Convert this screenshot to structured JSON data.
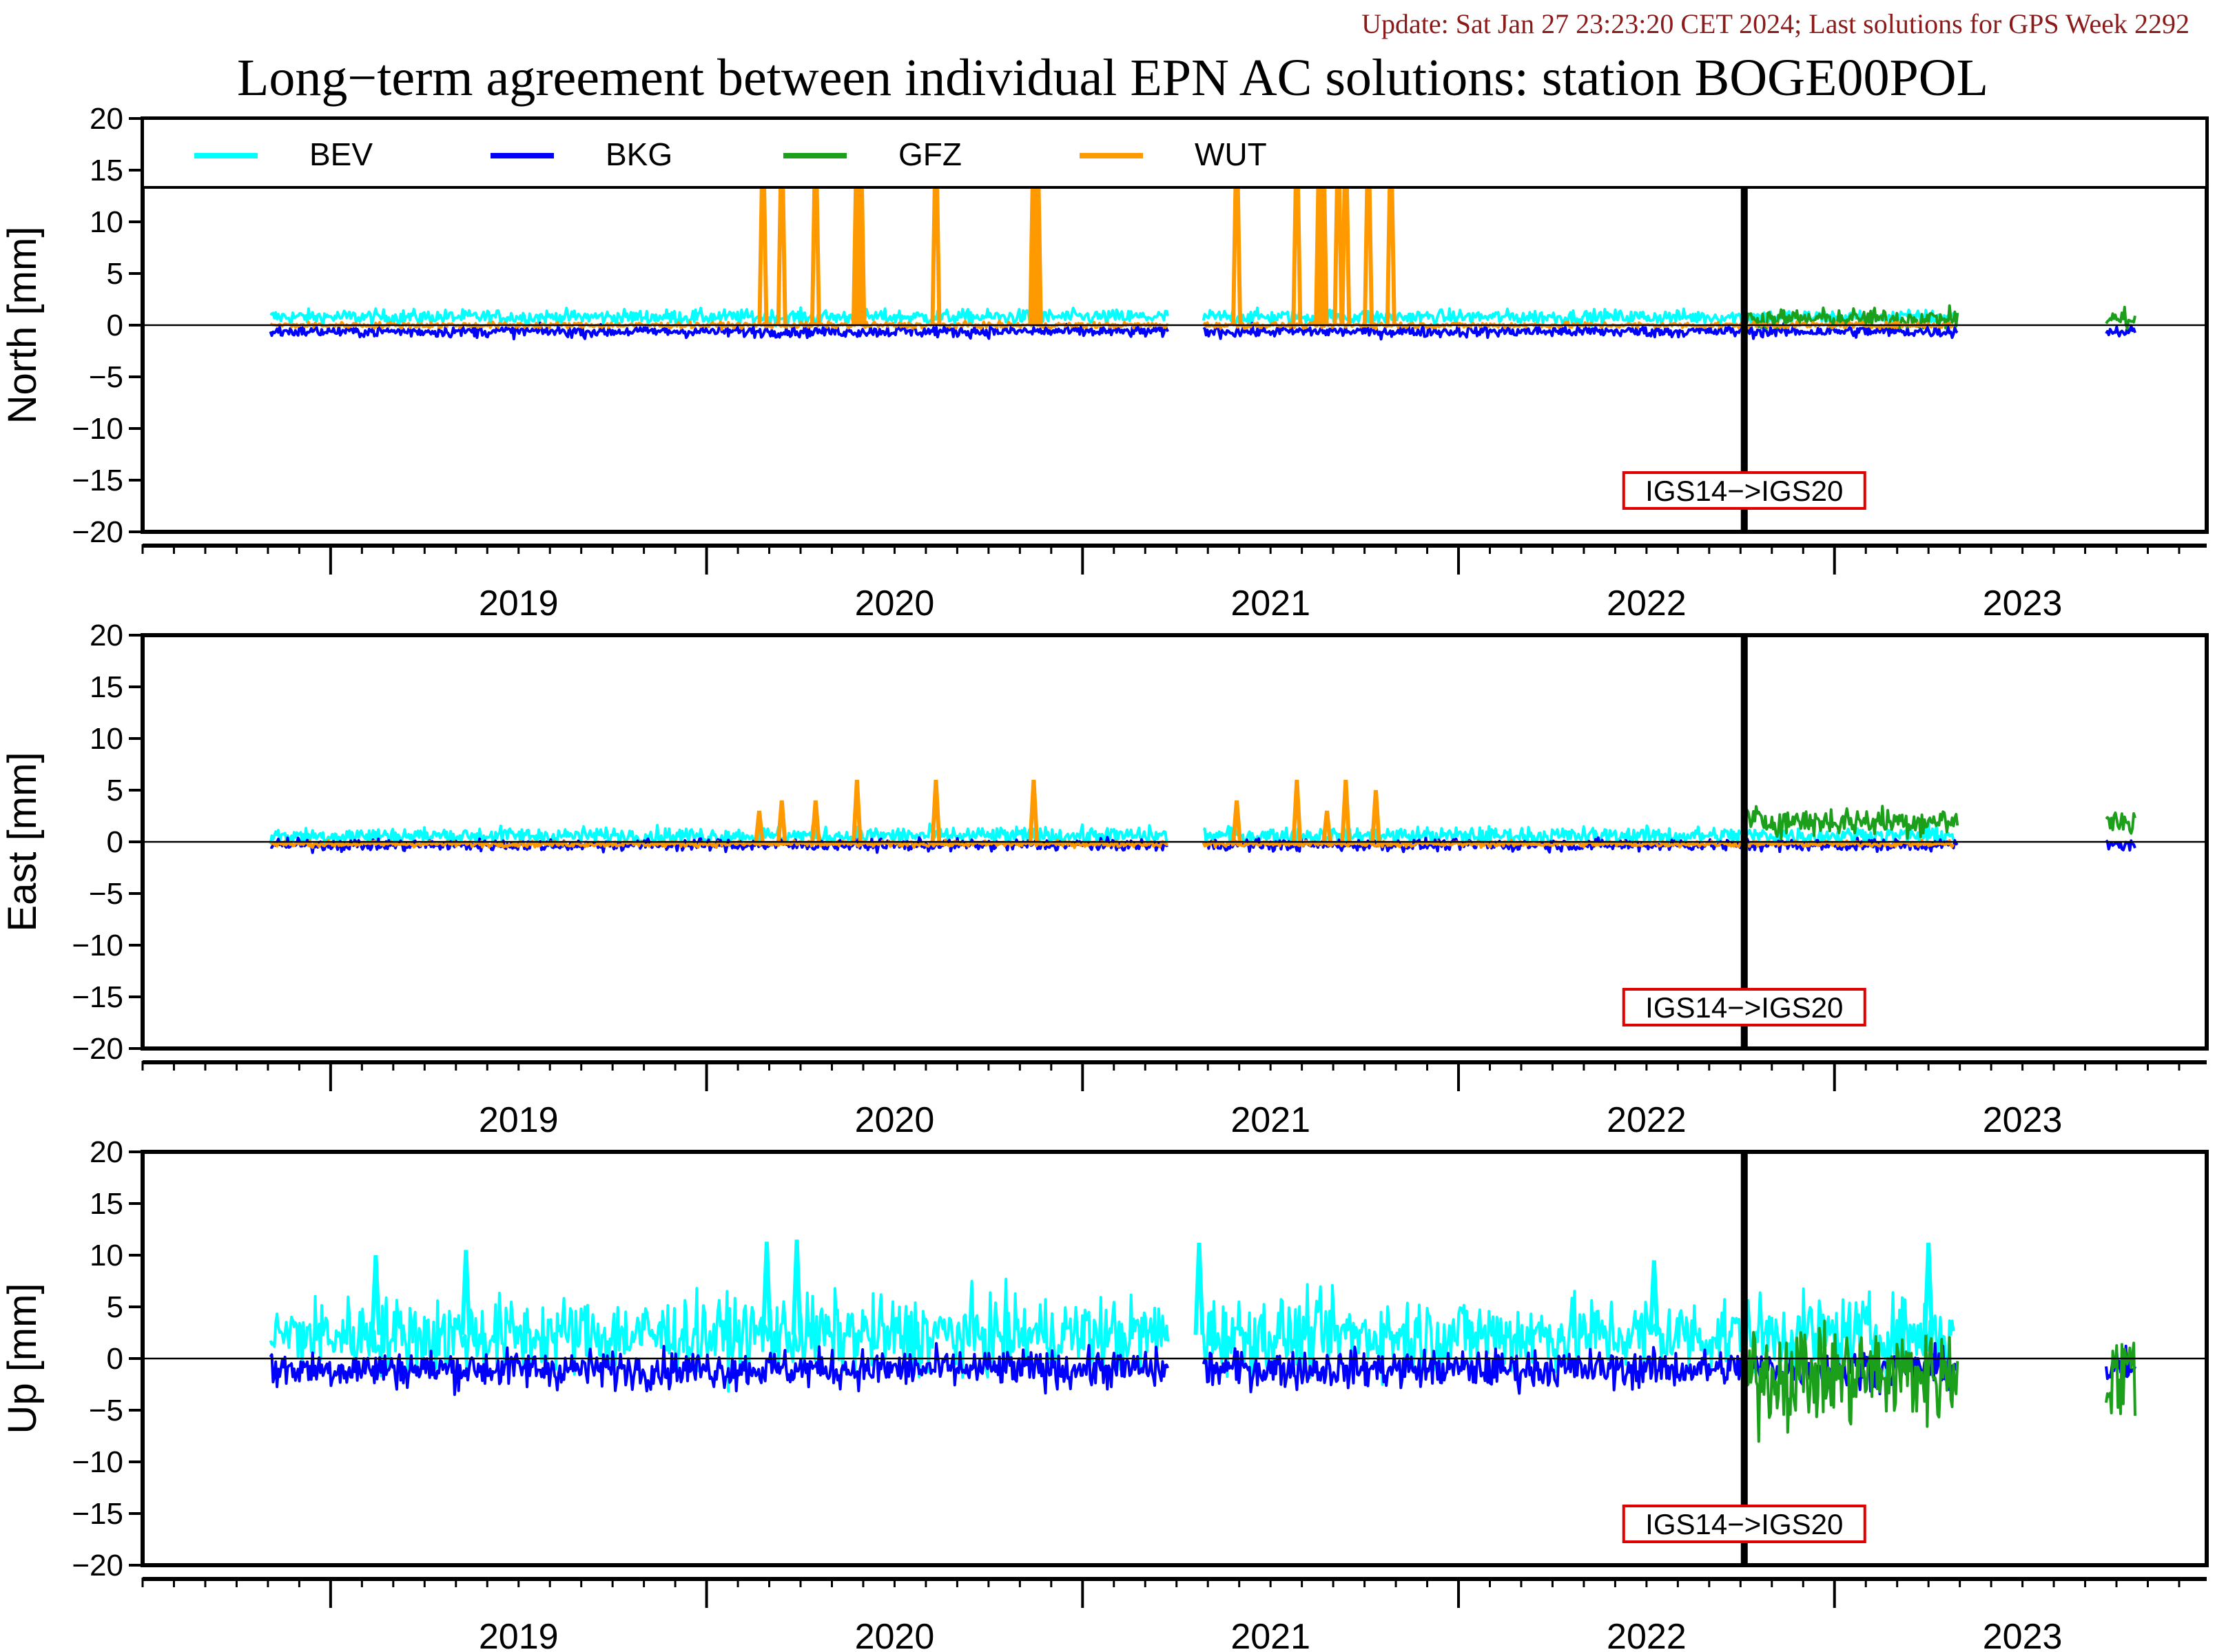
{
  "header": {
    "update_text": "Update: Sat Jan 27 23:23:20 CET 2024; Last solutions for GPS Week 2292",
    "title": "Long−term agreement between individual EPN AC solutions: station BOGE00POL"
  },
  "colors": {
    "update_text": "#8b1a1a",
    "BEV": "#00ffff",
    "BKG": "#0000ff",
    "GFZ": "#1ca01c",
    "WUT": "#ff9900",
    "marker_box": "#e00000"
  },
  "legend": [
    {
      "name": "BEV",
      "color": "#00ffff"
    },
    {
      "name": "BKG",
      "color": "#0000ff"
    },
    {
      "name": "GFZ",
      "color": "#1ca01c"
    },
    {
      "name": "WUT",
      "color": "#ff9900"
    }
  ],
  "chart_data": [
    {
      "type": "line",
      "ylabel": "North [mm]",
      "ylim": [
        -20,
        20
      ],
      "yticks": [
        "20",
        "15",
        "10",
        "5",
        "0",
        "−5",
        "−10",
        "−15",
        "−20"
      ],
      "xlim": [
        2018.5,
        2023.99
      ],
      "xtick_labels": [
        "2019",
        "2020",
        "2021",
        "2022",
        "2023"
      ],
      "frame_change": {
        "x": 2022.76,
        "label": "IGS14−>IGS20"
      },
      "series": [
        {
          "name": "BEV",
          "x_start": 2018.84,
          "x_end": 2023.32,
          "gaps": [
            [
              2021.23,
              2021.32
            ],
            [
              2023.33,
              2023.72
            ]
          ],
          "mean": 0.8,
          "noise": 0.5
        },
        {
          "name": "BKG",
          "x_start": 2018.84,
          "x_end": 2023.8,
          "gaps": [
            [
              2021.23,
              2021.32
            ],
            [
              2023.33,
              2023.72
            ]
          ],
          "mean": -0.6,
          "noise": 0.4
        },
        {
          "name": "GFZ",
          "x_start": 2022.76,
          "x_end": 2023.8,
          "gaps": [
            [
              2023.33,
              2023.72
            ]
          ],
          "mean": 0.6,
          "noise": 0.7
        },
        {
          "name": "WUT",
          "x_start": 2018.84,
          "x_end": 2023.32,
          "gaps": [
            [
              2021.23,
              2021.32
            ]
          ],
          "mean": 0.0,
          "noise": 0.2
        }
      ],
      "spikes": {
        "series": "WUT",
        "points": [
          [
            2020.15,
            20
          ],
          [
            2020.2,
            20
          ],
          [
            2020.29,
            20
          ],
          [
            2020.4,
            20
          ],
          [
            2020.41,
            20
          ],
          [
            2020.61,
            20
          ],
          [
            2020.87,
            20
          ],
          [
            2020.88,
            20
          ],
          [
            2021.41,
            20
          ],
          [
            2021.57,
            20
          ],
          [
            2021.63,
            20
          ],
          [
            2021.64,
            20
          ],
          [
            2021.68,
            20
          ],
          [
            2021.7,
            20
          ],
          [
            2021.76,
            20
          ],
          [
            2021.82,
            20
          ]
        ]
      }
    },
    {
      "type": "line",
      "ylabel": "East [mm]",
      "ylim": [
        -20,
        20
      ],
      "yticks": [
        "20",
        "15",
        "10",
        "5",
        "0",
        "−5",
        "−10",
        "−15",
        "−20"
      ],
      "xlim": [
        2018.5,
        2023.99
      ],
      "xtick_labels": [
        "2019",
        "2020",
        "2021",
        "2022",
        "2023"
      ],
      "frame_change": {
        "x": 2022.76,
        "label": "IGS14−>IGS20"
      },
      "series": [
        {
          "name": "BEV",
          "x_start": 2018.84,
          "x_end": 2023.32,
          "gaps": [
            [
              2021.23,
              2021.32
            ],
            [
              2023.33,
              2023.72
            ]
          ],
          "mean": 0.6,
          "noise": 0.6
        },
        {
          "name": "BKG",
          "x_start": 2018.84,
          "x_end": 2023.8,
          "gaps": [
            [
              2021.23,
              2021.32
            ],
            [
              2023.33,
              2023.72
            ]
          ],
          "mean": -0.3,
          "noise": 0.4
        },
        {
          "name": "GFZ",
          "x_start": 2022.76,
          "x_end": 2023.8,
          "gaps": [
            [
              2023.33,
              2023.72
            ]
          ],
          "mean": 2.0,
          "noise": 1.0
        },
        {
          "name": "WUT",
          "x_start": 2018.84,
          "x_end": 2023.32,
          "gaps": [
            [
              2021.23,
              2021.32
            ]
          ],
          "mean": -0.2,
          "noise": 0.2
        }
      ],
      "spikes": {
        "series": "WUT",
        "points": [
          [
            2020.14,
            3
          ],
          [
            2020.2,
            4
          ],
          [
            2020.29,
            4
          ],
          [
            2020.4,
            6
          ],
          [
            2020.61,
            6
          ],
          [
            2020.87,
            6
          ],
          [
            2021.41,
            4
          ],
          [
            2021.57,
            6
          ],
          [
            2021.65,
            3
          ],
          [
            2021.7,
            6
          ],
          [
            2021.78,
            5
          ]
        ]
      }
    },
    {
      "type": "line",
      "ylabel": "Up [mm]",
      "ylim": [
        -20,
        20
      ],
      "yticks": [
        "20",
        "15",
        "10",
        "5",
        "0",
        "−5",
        "−10",
        "−15",
        "−20"
      ],
      "xlim": [
        2018.5,
        2023.99
      ],
      "xtick_labels": [
        "2019",
        "2020",
        "2021",
        "2022",
        "2023"
      ],
      "frame_change": {
        "x": 2022.76,
        "label": "IGS14−>IGS20"
      },
      "series": [
        {
          "name": "BEV",
          "x_start": 2018.84,
          "x_end": 2023.32,
          "gaps": [
            [
              2021.23,
              2021.32
            ],
            [
              2023.33,
              2023.72
            ]
          ],
          "mean": 2.3,
          "noise": 2.6
        },
        {
          "name": "BKG",
          "x_start": 2018.84,
          "x_end": 2023.8,
          "gaps": [
            [
              2021.23,
              2021.32
            ],
            [
              2023.33,
              2023.72
            ]
          ],
          "mean": -1.0,
          "noise": 1.3
        },
        {
          "name": "GFZ",
          "x_start": 2022.76,
          "x_end": 2023.8,
          "gaps": [
            [
              2023.33,
              2023.72
            ]
          ],
          "mean": -1.5,
          "noise": 3.5
        }
      ],
      "spikes": {
        "series": "BEV",
        "points": [
          [
            2019.12,
            10
          ],
          [
            2019.36,
            10.5
          ],
          [
            2020.16,
            11.3
          ],
          [
            2020.24,
            11.5
          ],
          [
            2021.31,
            11.2
          ],
          [
            2022.52,
            9.5
          ],
          [
            2023.25,
            11.2
          ]
        ]
      }
    }
  ]
}
